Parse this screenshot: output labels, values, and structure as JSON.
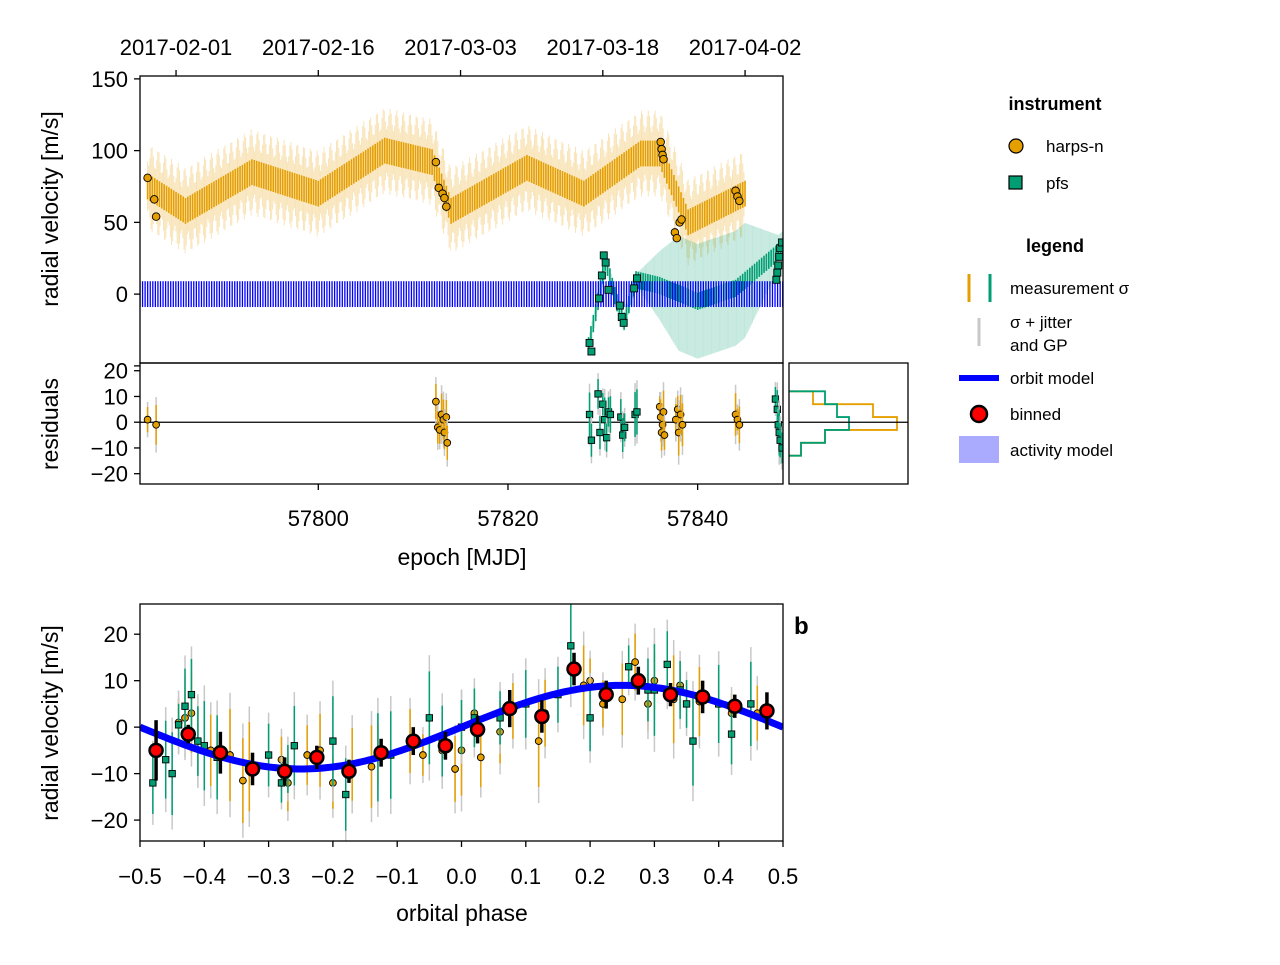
{
  "chart_data": [
    {
      "type": "scatter",
      "xlabel": "epoch [MJD]",
      "ylabel": "radial velocity [m/s]",
      "xlim": [
        57781.2,
        57849.0
      ],
      "ylim": [
        -48,
        152
      ],
      "x_ticks": [
        "57800",
        "57820",
        "57840"
      ],
      "x_tick_values": [
        57800,
        57820,
        57840
      ],
      "y_ticks": [
        "0",
        "50",
        "100",
        "150"
      ],
      "y_tick_values": [
        0,
        50,
        100,
        150
      ],
      "top_axis_ticks": [
        "2017-02-01",
        "2017-02-16",
        "2017-03-03",
        "2017-03-18",
        "2017-04-02"
      ],
      "top_axis_tick_values": [
        57785,
        57800,
        57815,
        57830,
        57845
      ],
      "series": [
        {
          "name": "harps-n",
          "color": "#E69F00",
          "marker": "circle",
          "points": [
            [
              57782.0,
              81
            ],
            [
              57782.7,
              66
            ],
            [
              57782.9,
              54
            ],
            [
              57812.4,
              92
            ],
            [
              57812.7,
              74
            ],
            [
              57813.1,
              70
            ],
            [
              57813.3,
              67
            ],
            [
              57813.5,
              61
            ],
            [
              57836.1,
              106
            ],
            [
              57836.2,
              101
            ],
            [
              57836.3,
              97
            ],
            [
              57836.4,
              94
            ],
            [
              57837.6,
              43
            ],
            [
              57837.8,
              39
            ],
            [
              57838.1,
              50
            ],
            [
              57838.3,
              52
            ],
            [
              57844.0,
              72
            ],
            [
              57844.2,
              68
            ],
            [
              57844.4,
              65
            ]
          ]
        },
        {
          "name": "pfs",
          "color": "#009E73",
          "marker": "square",
          "points": [
            [
              57828.6,
              -34
            ],
            [
              57828.8,
              -40
            ],
            [
              57829.6,
              -3
            ],
            [
              57829.9,
              13
            ],
            [
              57830.1,
              27
            ],
            [
              57830.3,
              22
            ],
            [
              57830.6,
              3
            ],
            [
              57831.8,
              -8
            ],
            [
              57832.0,
              -16
            ],
            [
              57832.2,
              -20
            ],
            [
              57833.3,
              4
            ],
            [
              57833.6,
              11
            ],
            [
              57848.3,
              10
            ],
            [
              57848.4,
              15
            ],
            [
              57848.5,
              20
            ],
            [
              57848.6,
              26
            ],
            [
              57848.7,
              32
            ],
            [
              57848.9,
              36
            ]
          ]
        }
      ],
      "model": {
        "harps_mean": [
          [
            57782,
            75
          ],
          [
            57786,
            58
          ],
          [
            57793,
            85
          ],
          [
            57800,
            70
          ],
          [
            57807,
            100
          ],
          [
            57812,
            92
          ],
          [
            57814,
            58
          ],
          [
            57822,
            88
          ],
          [
            57828,
            70
          ],
          [
            57834,
            98
          ],
          [
            57836,
            98
          ],
          [
            57839,
            50
          ],
          [
            57845,
            70
          ]
        ],
        "harps_band": 30,
        "pfs_mean": [
          [
            57828.5,
            -36
          ],
          [
            57829.5,
            -5
          ],
          [
            57830.3,
            24
          ],
          [
            57831.2,
            0
          ],
          [
            57832.2,
            -20
          ],
          [
            57833.5,
            10
          ],
          [
            57836,
            6
          ],
          [
            57840,
            -5
          ],
          [
            57844,
            4
          ],
          [
            57849,
            32
          ]
        ],
        "pfs_band": 40,
        "orbit_amplitude": 9
      }
    },
    {
      "type": "scatter",
      "ylabel": "residuals",
      "xlim": [
        57781.2,
        57849.0
      ],
      "ylim": [
        -24,
        23
      ],
      "y_ticks": [
        "-20",
        "-10",
        "0",
        "10",
        "20"
      ],
      "y_tick_values": [
        -20,
        -10,
        0,
        10,
        20
      ],
      "series": [
        {
          "name": "harps-n",
          "color": "#E69F00",
          "marker": "circle",
          "points": [
            [
              57782.0,
              1
            ],
            [
              57782.9,
              -1
            ],
            [
              57812.4,
              8
            ],
            [
              57812.6,
              -2
            ],
            [
              57812.8,
              -3
            ],
            [
              57813.0,
              3
            ],
            [
              57813.2,
              1
            ],
            [
              57813.3,
              -4
            ],
            [
              57813.5,
              2
            ],
            [
              57813.6,
              -8
            ],
            [
              57836.0,
              6
            ],
            [
              57836.1,
              2
            ],
            [
              57836.2,
              -4
            ],
            [
              57836.3,
              -1
            ],
            [
              57836.4,
              4
            ],
            [
              57836.5,
              -5
            ],
            [
              57837.7,
              1
            ],
            [
              57837.9,
              5
            ],
            [
              57838.0,
              -4
            ],
            [
              57838.2,
              3
            ],
            [
              57838.4,
              -1
            ],
            [
              57844.0,
              3
            ],
            [
              57844.2,
              1
            ],
            [
              57844.4,
              -1
            ]
          ]
        },
        {
          "name": "pfs",
          "color": "#009E73",
          "marker": "square",
          "points": [
            [
              57828.6,
              3
            ],
            [
              57828.8,
              -7
            ],
            [
              57829.5,
              11
            ],
            [
              57829.7,
              -4
            ],
            [
              57830.0,
              7
            ],
            [
              57830.2,
              1
            ],
            [
              57830.4,
              -6
            ],
            [
              57830.6,
              4
            ],
            [
              57830.8,
              3
            ],
            [
              57831.9,
              2
            ],
            [
              57832.1,
              -5
            ],
            [
              57832.3,
              -2
            ],
            [
              57833.4,
              3
            ],
            [
              57833.6,
              4
            ],
            [
              57848.2,
              9
            ],
            [
              57848.4,
              5
            ],
            [
              57848.5,
              -1
            ],
            [
              57848.6,
              -4
            ],
            [
              57848.7,
              -7
            ],
            [
              57848.9,
              -10
            ]
          ]
        }
      ],
      "histogram": {
        "bin_edges": [
          -13,
          -8,
          -3,
          2,
          7,
          12
        ],
        "harps-n": [
          1,
          3,
          9,
          7,
          2
        ],
        "pfs": [
          1,
          3,
          5,
          4,
          3
        ]
      }
    },
    {
      "type": "scatter",
      "panel_label": "b",
      "xlabel": "orbital phase",
      "ylabel": "radial velocity [m/s]",
      "xlim": [
        -0.5,
        0.5
      ],
      "ylim": [
        -24.5,
        26.5
      ],
      "x_ticks": [
        "−0.5",
        "−0.4",
        "−0.3",
        "−0.2",
        "−0.1",
        "0.0",
        "0.1",
        "0.2",
        "0.3",
        "0.4",
        "0.5"
      ],
      "x_tick_values": [
        -0.5,
        -0.4,
        -0.3,
        -0.2,
        -0.1,
        0.0,
        0.1,
        0.2,
        0.3,
        0.4,
        0.5
      ],
      "y_ticks": [
        "−20",
        "−10",
        "0",
        "10",
        "20"
      ],
      "y_tick_values": [
        -20,
        -10,
        0,
        10,
        20
      ],
      "orbit_model": {
        "amplitude": 9,
        "phase_of_max": 0.25
      },
      "binned": {
        "name": "binned",
        "color": "#FF0000",
        "x": [
          -0.475,
          -0.425,
          -0.375,
          -0.325,
          -0.275,
          -0.225,
          -0.175,
          -0.125,
          -0.075,
          -0.025,
          0.025,
          0.075,
          0.125,
          0.175,
          0.225,
          0.275,
          0.325,
          0.375,
          0.425,
          0.475
        ],
        "y": [
          -5,
          -1.5,
          -5.5,
          -9,
          -9.5,
          -6.5,
          -9.5,
          -5.5,
          -3,
          -4,
          -0.5,
          4,
          2.3,
          12.5,
          7,
          10,
          7,
          6.5,
          4.5,
          3.5
        ],
        "err": [
          6.5,
          2,
          4.5,
          3.5,
          3,
          2.5,
          2.5,
          3,
          3,
          3,
          3,
          4,
          3.5,
          3.5,
          3,
          3,
          2.5,
          3.5,
          2.5,
          4
        ]
      },
      "series": [
        {
          "name": "harps-n",
          "color": "#E69F00",
          "marker": "circle",
          "points": [
            [
              -0.44,
              1
            ],
            [
              -0.43,
              2
            ],
            [
              -0.42,
              3
            ],
            [
              -0.41,
              -3
            ],
            [
              -0.39,
              -5
            ],
            [
              -0.38,
              -6
            ],
            [
              -0.36,
              -6
            ],
            [
              -0.34,
              -11.5
            ],
            [
              -0.33,
              -8.5
            ],
            [
              -0.28,
              -7
            ],
            [
              -0.27,
              -12
            ],
            [
              -0.24,
              -6
            ],
            [
              -0.22,
              -5
            ],
            [
              -0.2,
              -12
            ],
            [
              -0.17,
              -8
            ],
            [
              -0.14,
              -8.5
            ],
            [
              -0.13,
              -6
            ],
            [
              -0.08,
              -3
            ],
            [
              -0.06,
              -6
            ],
            [
              -0.03,
              -5
            ],
            [
              -0.01,
              -9
            ],
            [
              0.0,
              -5
            ],
            [
              0.02,
              3
            ],
            [
              0.03,
              -6.5
            ],
            [
              0.06,
              -1
            ],
            [
              0.08,
              3.5
            ],
            [
              0.12,
              -3
            ],
            [
              0.13,
              3
            ],
            [
              0.19,
              9
            ],
            [
              0.2,
              10
            ],
            [
              0.22,
              5
            ],
            [
              0.25,
              6
            ],
            [
              0.27,
              14
            ],
            [
              0.29,
              5
            ],
            [
              0.3,
              10
            ],
            [
              0.33,
              6
            ],
            [
              0.34,
              9
            ],
            [
              0.37,
              5.5
            ],
            [
              0.4,
              5
            ],
            [
              0.42,
              3
            ],
            [
              0.46,
              3
            ]
          ]
        },
        {
          "name": "pfs",
          "color": "#009E73",
          "marker": "square",
          "points": [
            [
              -0.48,
              -12
            ],
            [
              -0.46,
              -7
            ],
            [
              -0.45,
              -10
            ],
            [
              -0.44,
              0.5
            ],
            [
              -0.43,
              4.5
            ],
            [
              -0.42,
              7
            ],
            [
              -0.41,
              -3
            ],
            [
              -0.4,
              -4
            ],
            [
              -0.38,
              -6.5
            ],
            [
              -0.3,
              -6
            ],
            [
              -0.28,
              -12
            ],
            [
              -0.27,
              -9
            ],
            [
              -0.26,
              -4
            ],
            [
              -0.2,
              -3
            ],
            [
              -0.18,
              -14.5
            ],
            [
              -0.13,
              -6.5
            ],
            [
              -0.11,
              -6
            ],
            [
              -0.05,
              2
            ],
            [
              -0.03,
              -3
            ],
            [
              0.0,
              0
            ],
            [
              0.02,
              2
            ],
            [
              0.06,
              2
            ],
            [
              0.1,
              5
            ],
            [
              0.15,
              7
            ],
            [
              0.17,
              17.5
            ],
            [
              0.2,
              2
            ],
            [
              0.26,
              13
            ],
            [
              0.29,
              8
            ],
            [
              0.3,
              8
            ],
            [
              0.32,
              13.5
            ],
            [
              0.34,
              8
            ],
            [
              0.35,
              5
            ],
            [
              0.36,
              -3
            ],
            [
              0.4,
              5
            ],
            [
              0.42,
              -1.5
            ],
            [
              0.45,
              5
            ]
          ]
        }
      ]
    }
  ],
  "legend": {
    "instrument_title": "instrument",
    "instrument_items": [
      {
        "label": "harps-n",
        "color": "#E69F00",
        "marker": "circle-marker-icon"
      },
      {
        "label": "pfs",
        "color": "#009E73",
        "marker": "square-marker-icon"
      }
    ],
    "legend_title": "legend",
    "legend_items": [
      {
        "label": "measurement σ",
        "icon": "measurement-sigma-icon"
      },
      {
        "label": "σ + jitter",
        "label2": "and GP",
        "icon": "jitter-gp-icon"
      },
      {
        "label": "orbit model",
        "icon": "orbit-model-line-icon",
        "color": "#0000FF"
      },
      {
        "label": "binned",
        "icon": "binned-marker-icon",
        "color": "#FF0000"
      },
      {
        "label": "activity model",
        "icon": "activity-model-patch-icon",
        "color": "#AAAAFF"
      }
    ]
  }
}
